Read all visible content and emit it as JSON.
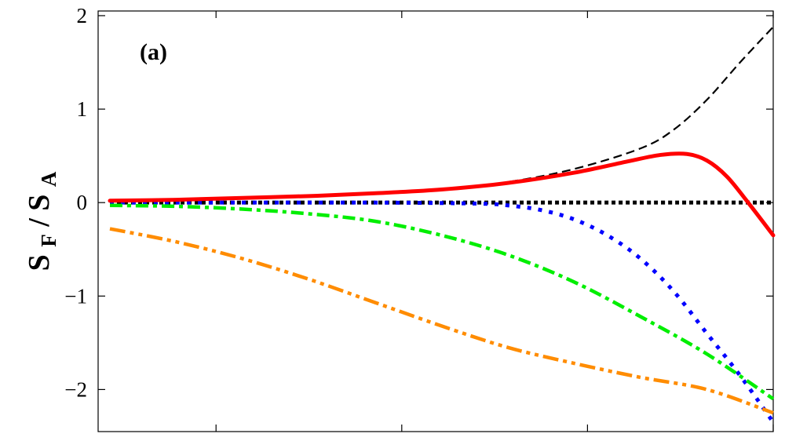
{
  "chart_data": {
    "type": "line",
    "panel_label": "(a)",
    "ylabel": {
      "main": "S",
      "sub1": "F",
      "sep": "/",
      "main2": "S",
      "sub2": "A"
    },
    "xlabel": "",
    "xlim": [
      0,
      1
    ],
    "ylim": [
      -2.45,
      2.05
    ],
    "yticks": [
      {
        "value": 2,
        "label": "2"
      },
      {
        "value": 1,
        "label": "1"
      },
      {
        "value": 0,
        "label": "0"
      },
      {
        "value": -1,
        "label": "−1"
      },
      {
        "value": -2,
        "label": "−2"
      }
    ],
    "xticks": [
      0.16,
      0.44,
      0.72,
      1.0
    ],
    "series": [
      {
        "color": "#000000",
        "style": "dashed-thin",
        "x": [
          0,
          0.1,
          0.2,
          0.3,
          0.4,
          0.5,
          0.6,
          0.7,
          0.8,
          0.85,
          0.9,
          0.95,
          1.0
        ],
        "y": [
          0.02,
          0.03,
          0.05,
          0.07,
          0.1,
          0.14,
          0.22,
          0.36,
          0.58,
          0.78,
          1.1,
          1.5,
          1.88
        ]
      },
      {
        "color": "#ff0000",
        "style": "solid-thick",
        "x": [
          0,
          0.1,
          0.2,
          0.3,
          0.4,
          0.5,
          0.6,
          0.7,
          0.78,
          0.83,
          0.87,
          0.9,
          0.93,
          0.96,
          1.0
        ],
        "y": [
          0.02,
          0.03,
          0.05,
          0.07,
          0.1,
          0.14,
          0.21,
          0.32,
          0.44,
          0.51,
          0.52,
          0.45,
          0.28,
          0.02,
          -0.35
        ]
      },
      {
        "color": "#000000",
        "style": "dotted-thick",
        "x": [
          0,
          1.0
        ],
        "y": [
          0,
          0
        ]
      },
      {
        "color": "#0000ff",
        "style": "dotted",
        "x": [
          0,
          0.2,
          0.4,
          0.55,
          0.6,
          0.65,
          0.7,
          0.75,
          0.8,
          0.85,
          0.9,
          0.95,
          1.0
        ],
        "y": [
          0.0,
          0.0,
          0.0,
          -0.01,
          -0.03,
          -0.08,
          -0.18,
          -0.35,
          -0.6,
          -0.95,
          -1.4,
          -1.85,
          -2.35
        ]
      },
      {
        "color": "#00ee00",
        "style": "dashdot",
        "x": [
          0,
          0.1,
          0.2,
          0.3,
          0.4,
          0.5,
          0.6,
          0.7,
          0.8,
          0.9,
          1.0
        ],
        "y": [
          -0.03,
          -0.04,
          -0.07,
          -0.12,
          -0.2,
          -0.35,
          -0.56,
          -0.85,
          -1.22,
          -1.62,
          -2.1
        ]
      },
      {
        "color": "#ff8c00",
        "style": "dashdotdot",
        "x": [
          0,
          0.1,
          0.2,
          0.3,
          0.4,
          0.5,
          0.6,
          0.7,
          0.8,
          0.9,
          1.0
        ],
        "y": [
          -0.28,
          -0.42,
          -0.6,
          -0.82,
          -1.07,
          -1.32,
          -1.55,
          -1.72,
          -1.87,
          -2.0,
          -2.25
        ]
      }
    ]
  }
}
